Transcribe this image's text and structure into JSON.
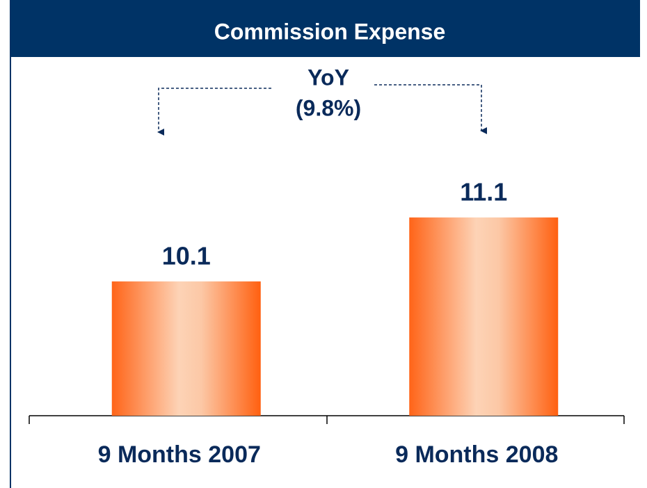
{
  "chart_data": {
    "type": "bar",
    "title": "Commission Expense",
    "categories": [
      "9 Months 2007",
      "9 Months 2008"
    ],
    "values": [
      10.1,
      11.1
    ],
    "ylim": [
      8,
      12
    ],
    "annotations": [
      "YoY",
      "(9.8%)"
    ]
  }
}
